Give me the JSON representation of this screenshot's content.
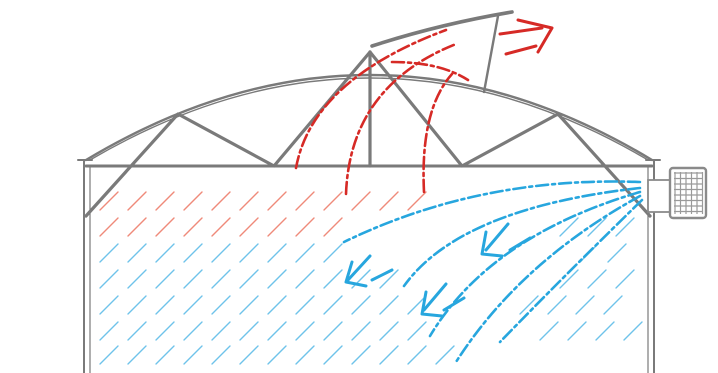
{
  "colors": {
    "background": "#ffffff",
    "structure": "#7a7a7a",
    "warm_air": "#d62a26",
    "warm_hatch": "#ef8a7a",
    "cool_air": "#27a6de",
    "cool_hatch": "#6fc3ea",
    "fan_body": "#9a9a9a"
  },
  "icons": {
    "fan": "ventilation-fan-icon",
    "roof_vent": "roof-vent-icon"
  }
}
